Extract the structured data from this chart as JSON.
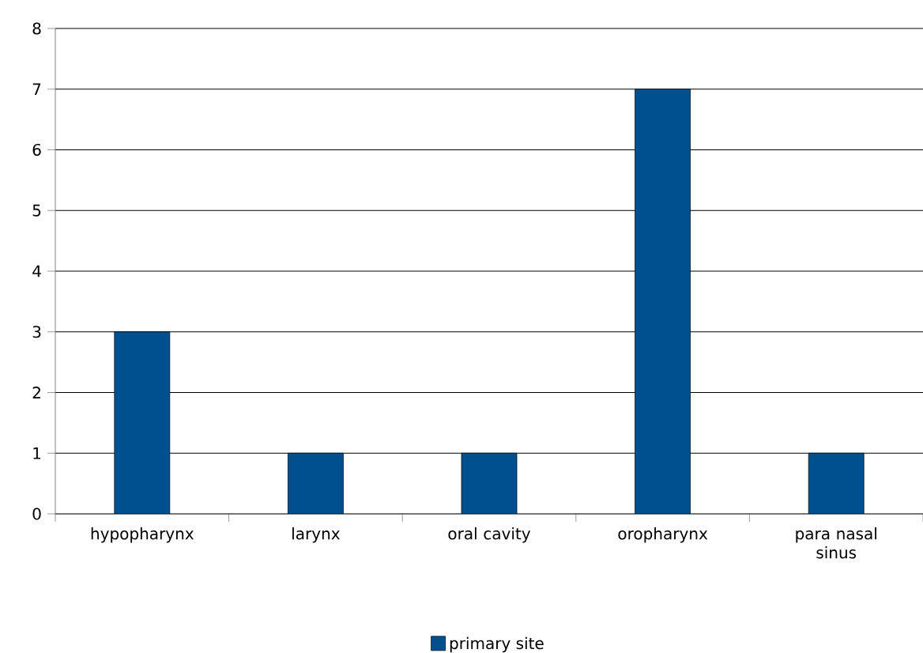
{
  "chart_data": {
    "type": "bar",
    "categories": [
      "hypopharynx",
      "larynx",
      "oral cavity",
      "oropharynx",
      "para nasal sinus"
    ],
    "series": [
      {
        "name": "primary site",
        "color": "#00508f",
        "values": [
          3,
          1,
          1,
          7,
          1
        ]
      }
    ],
    "ylim": [
      0,
      8
    ],
    "yticks": [
      0,
      1,
      2,
      3,
      4,
      5,
      6,
      7,
      8
    ],
    "grid": "y",
    "legend": "bottom"
  }
}
